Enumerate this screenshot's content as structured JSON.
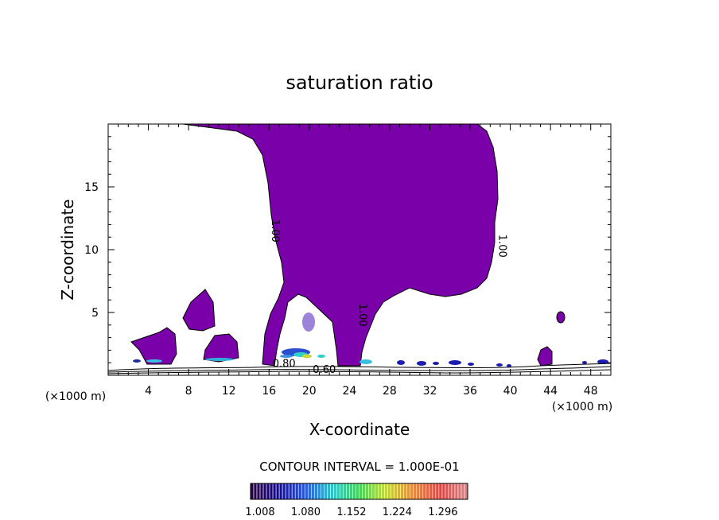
{
  "chart_data": {
    "type": "contour",
    "title": "saturation ratio",
    "xlabel": "X-coordinate",
    "ylabel": "Z-coordinate",
    "x_unit_left": "(×1000 m)",
    "x_unit_right": "(×1000 m)",
    "xlim": [
      0,
      50
    ],
    "ylim": [
      0,
      20
    ],
    "x_ticks": [
      4,
      8,
      12,
      16,
      20,
      24,
      28,
      32,
      36,
      40,
      44,
      48
    ],
    "y_ticks": [
      5,
      10,
      15
    ],
    "contour_interval_text": "CONTOUR INTERVAL = 1.000E-01",
    "contour_labels": [
      {
        "text": "1.00",
        "x": 16.3,
        "z": 11.5,
        "rotate": 90
      },
      {
        "text": "1.00",
        "x": 38.9,
        "z": 10.3,
        "rotate": 90
      },
      {
        "text": "1.00",
        "x": 25.0,
        "z": 4.8,
        "rotate": 90
      },
      {
        "text": "0.80",
        "x": 17.5,
        "z": 0.65,
        "rotate": 0
      },
      {
        "text": "0.60",
        "x": 21.5,
        "z": 0.2,
        "rotate": 0
      }
    ],
    "fill_color": "#7a00aa",
    "colorbar": {
      "min": 1.008,
      "max": 1.35,
      "tick_labels": [
        "1.008",
        "1.080",
        "1.152",
        "1.224",
        "1.296"
      ]
    }
  }
}
